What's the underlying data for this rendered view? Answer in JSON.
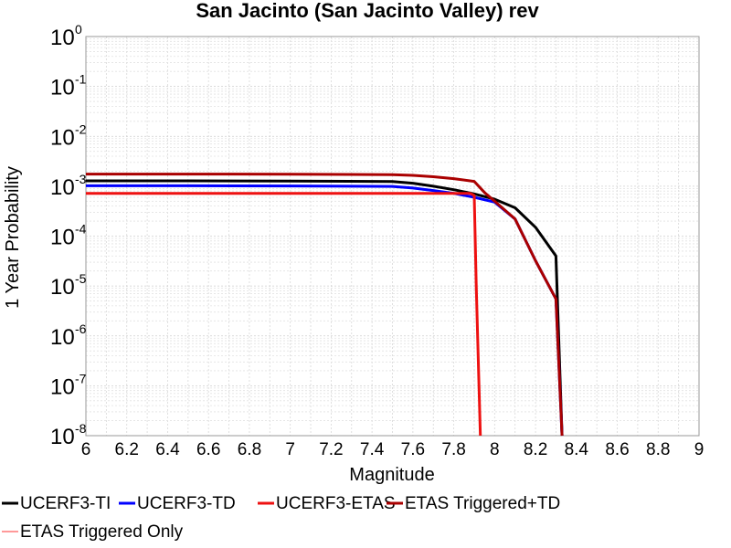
{
  "chart_data": {
    "type": "line",
    "title": "San Jacinto (San Jacinto Valley) rev",
    "xlabel": "Magnitude",
    "ylabel": "1 Year Probability",
    "xlim": [
      6,
      9
    ],
    "ylim": [
      1e-08,
      1
    ],
    "yscale": "log",
    "grid": true,
    "legend_position": "bottom",
    "x_ticks": [
      "6",
      "6.2",
      "6.4",
      "6.6",
      "6.8",
      "7",
      "7.2",
      "7.4",
      "7.6",
      "7.8",
      "8",
      "8.2",
      "8.4",
      "8.6",
      "8.8",
      "9"
    ],
    "y_ticks": [
      {
        "base": "10",
        "exp": "0"
      },
      {
        "base": "10",
        "exp": "-1"
      },
      {
        "base": "10",
        "exp": "-2"
      },
      {
        "base": "10",
        "exp": "-3"
      },
      {
        "base": "10",
        "exp": "-4"
      },
      {
        "base": "10",
        "exp": "-5"
      },
      {
        "base": "10",
        "exp": "-6"
      },
      {
        "base": "10",
        "exp": "-7"
      },
      {
        "base": "10",
        "exp": "-8"
      }
    ],
    "series": [
      {
        "name": "UCERF3-TI",
        "color": "#000000",
        "x": [
          6.0,
          6.5,
          7.0,
          7.5,
          7.6,
          7.7,
          7.8,
          7.9,
          8.0,
          8.1,
          8.2,
          8.3,
          8.33
        ],
        "y": [
          0.00128,
          0.00128,
          0.00127,
          0.00124,
          0.00115,
          0.001,
          0.00085,
          0.0007,
          0.00055,
          0.00037,
          0.00015,
          4e-05,
          1e-08
        ]
      },
      {
        "name": "UCERF3-TD",
        "color": "#0000ff",
        "x": [
          6.0,
          6.5,
          7.0,
          7.5,
          7.6,
          7.7,
          7.8,
          7.9,
          8.0,
          8.1,
          8.2,
          8.3,
          8.33
        ],
        "y": [
          0.00102,
          0.00102,
          0.00101,
          0.00099,
          0.00092,
          0.00082,
          0.00072,
          0.0006,
          0.00048,
          0.00022,
          3.2e-05,
          5.5e-06,
          1e-08
        ]
      },
      {
        "name": "UCERF3-ETAS",
        "color": "#ee1111",
        "x": [
          6.0,
          6.5,
          7.0,
          7.5,
          7.7,
          7.8,
          7.88,
          7.9,
          7.91,
          7.93
        ],
        "y": [
          0.00072,
          0.00072,
          0.00072,
          0.00072,
          0.00072,
          0.00072,
          0.00072,
          0.00065,
          1e-05,
          1e-08
        ]
      },
      {
        "name": "ETAS Triggered+TD",
        "color": "#aa0000",
        "x": [
          6.0,
          6.5,
          7.0,
          7.5,
          7.6,
          7.7,
          7.8,
          7.9,
          7.95,
          8.0,
          8.1,
          8.2,
          8.3,
          8.33
        ],
        "y": [
          0.00175,
          0.00175,
          0.00174,
          0.0017,
          0.00165,
          0.00155,
          0.00142,
          0.00125,
          0.00075,
          0.0005,
          0.00022,
          3.2e-05,
          5.5e-06,
          1e-08
        ]
      },
      {
        "name": "ETAS Triggered Only",
        "color": "#ff9999",
        "x": [],
        "y": []
      }
    ]
  }
}
